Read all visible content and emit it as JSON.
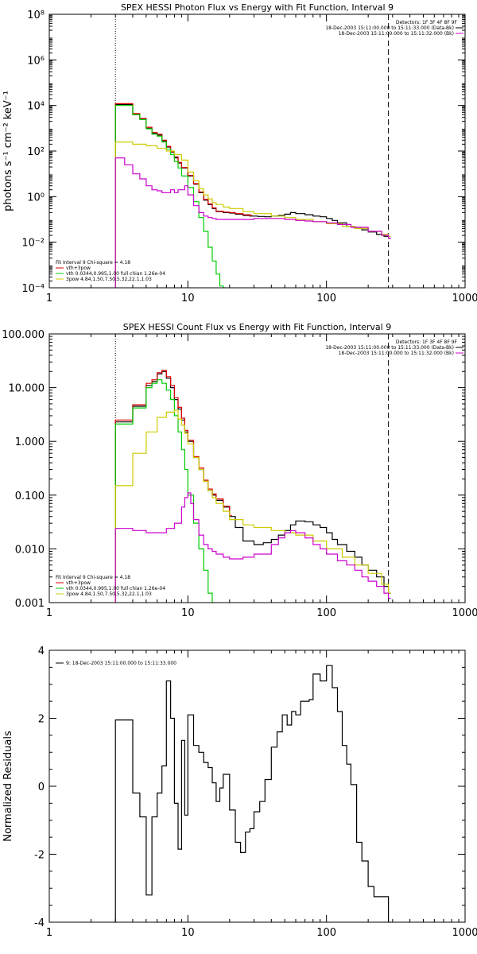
{
  "chart_data": [
    {
      "type": "line",
      "title": "SPEX HESSI Photon Flux vs Energy with Fit Function, Interval 9",
      "xlabel": "",
      "ylabel": "photons s⁻¹ cm⁻² keV⁻¹",
      "xscale": "log",
      "yscale": "log",
      "xlim": [
        1,
        1000
      ],
      "ylim": [
        0.0001,
        100000000
      ],
      "xticks": [
        1,
        10,
        100,
        1000
      ],
      "xtick_labels": [
        "1",
        "10",
        "100",
        "1000"
      ],
      "yticks": [
        0.0001,
        0.01,
        1,
        100,
        10000,
        1000000,
        100000000
      ],
      "ytick_labels": [
        "10⁻⁴",
        "10⁻²",
        "10⁰",
        "10²",
        "10⁴",
        "10⁶",
        "10⁸"
      ],
      "vlines": [
        {
          "x": 3,
          "style": "dotted"
        },
        {
          "x": 280,
          "style": "dashed"
        }
      ],
      "legend_right": {
        "header": "Detectors: 1F 3F 4F 8F 9F",
        "entries": [
          {
            "text": "18-Dec-2003 15:11:00.000 to 15:11:33.000 (Data-Bk)",
            "color": "#000000"
          },
          {
            "text": "18-Dec-2003 15:11:00.000 to 15:11:32.000 (Bk)",
            "color": "#cc00cc"
          }
        ]
      },
      "legend_left": {
        "header": "Fit Interval  9    Chi-square = 4.18",
        "entries": [
          {
            "text": "vth+3pow",
            "color": "#dd0000"
          },
          {
            "text": "vth 0.0344,0.995,1.00  full chian 1.26e-04",
            "color": "#00cc00"
          },
          {
            "text": "3pow 4.84,1.50,7.50,5.32,22.1,1.03",
            "color": "#cccc00"
          }
        ]
      },
      "series": [
        {
          "color": "#000000",
          "step": true,
          "x": [
            3,
            3.5,
            4,
            4.5,
            5,
            5.5,
            6,
            6.5,
            7,
            7.5,
            8,
            8.5,
            9,
            10,
            11,
            12,
            13,
            14,
            15,
            16,
            18,
            20,
            22,
            25,
            28,
            32,
            36,
            40,
            45,
            50,
            55,
            60,
            70,
            80,
            90,
            100,
            110,
            120,
            140,
            160,
            180,
            200,
            230,
            260,
            280
          ],
          "y": [
            11000,
            11000,
            4000,
            2500,
            1000,
            600,
            500,
            280,
            150,
            90,
            50,
            30,
            18,
            8,
            3.5,
            1.5,
            0.7,
            0.45,
            0.3,
            0.22,
            0.2,
            0.19,
            0.17,
            0.15,
            0.14,
            0.135,
            0.13,
            0.14,
            0.15,
            0.17,
            0.2,
            0.18,
            0.16,
            0.14,
            0.13,
            0.11,
            0.09,
            0.07,
            0.05,
            0.04,
            0.035,
            0.028,
            0.022,
            0.018,
            0.015
          ]
        },
        {
          "color": "#dd0000",
          "step": true,
          "x": [
            3,
            3.5,
            4,
            4.5,
            5,
            5.5,
            6,
            6.5,
            7,
            7.5,
            8,
            8.5,
            9,
            10,
            11,
            12,
            13,
            14,
            15,
            16,
            18,
            20,
            22,
            25,
            28
          ],
          "y": [
            12000,
            12000,
            4400,
            2700,
            1100,
            650,
            550,
            300,
            160,
            95,
            55,
            32,
            19,
            8.5,
            3.7,
            1.6,
            0.75,
            0.48,
            0.32,
            0.23,
            0.21,
            0.2,
            0.18,
            0.16,
            0.15
          ]
        },
        {
          "color": "#00cc00",
          "step": true,
          "x": [
            3,
            3.5,
            4,
            4.5,
            5,
            5.5,
            6,
            6.5,
            7,
            7.5,
            8,
            8.5,
            9,
            10,
            11,
            12,
            13,
            14,
            15,
            16,
            17,
            18
          ],
          "y": [
            10000,
            10000,
            4000,
            2400,
            950,
            550,
            450,
            250,
            120,
            70,
            35,
            18,
            8,
            2.5,
            0.6,
            0.12,
            0.03,
            0.006,
            0.0015,
            0.0004,
            0.00012,
            5e-05
          ]
        },
        {
          "color": "#cccc00",
          "step": true,
          "x": [
            3,
            4,
            5,
            6,
            7,
            8,
            9,
            10,
            11,
            12,
            13,
            14,
            15,
            16,
            18,
            20,
            25,
            30,
            40,
            50,
            60,
            80,
            100,
            130,
            160,
            200,
            250,
            280
          ],
          "y": [
            250,
            200,
            170,
            130,
            100,
            70,
            40,
            12,
            5,
            2.2,
            1.2,
            0.8,
            0.55,
            0.45,
            0.35,
            0.3,
            0.22,
            0.18,
            0.14,
            0.12,
            0.1,
            0.08,
            0.065,
            0.05,
            0.04,
            0.03,
            0.022,
            0.018
          ]
        },
        {
          "color": "#cc00cc",
          "step": true,
          "x": [
            3,
            3.5,
            4,
            4.5,
            5,
            5.5,
            6,
            6.5,
            7,
            7.5,
            8,
            8.5,
            9,
            9.5,
            10,
            11,
            12,
            13,
            14,
            15,
            16,
            18,
            20,
            25,
            30,
            40,
            50,
            60,
            70,
            80,
            100,
            120,
            150,
            200,
            250,
            280
          ],
          "y": [
            50,
            25,
            10,
            6,
            3,
            2,
            1.8,
            1.5,
            1.5,
            2,
            1.5,
            2,
            2,
            3,
            1.2,
            0.4,
            0.2,
            0.14,
            0.12,
            0.11,
            0.1,
            0.1,
            0.1,
            0.1,
            0.11,
            0.11,
            0.1,
            0.09,
            0.085,
            0.08,
            0.07,
            0.06,
            0.045,
            0.03,
            0.02,
            0.015
          ]
        }
      ]
    },
    {
      "type": "line",
      "title": "SPEX HESSI Count Flux vs Energy with Fit Function, Interval 9",
      "xlabel": "",
      "ylabel": "",
      "xscale": "log",
      "yscale": "log",
      "xlim": [
        1,
        1000
      ],
      "ylim": [
        0.001,
        100
      ],
      "xticks": [
        1,
        10,
        100,
        1000
      ],
      "xtick_labels": [
        "1",
        "10",
        "100",
        "1000"
      ],
      "yticks": [
        0.001,
        0.01,
        0.1,
        1,
        10,
        100
      ],
      "ytick_labels": [
        "0.001",
        "0.010",
        "0.100",
        "1.000",
        "10.000",
        "100.000"
      ],
      "vlines": [
        {
          "x": 3,
          "style": "dotted"
        },
        {
          "x": 280,
          "style": "dashed"
        }
      ],
      "legend_right": {
        "header": "Detectors: 1F 3F 4F 8F 9F",
        "entries": [
          {
            "text": "18-Dec-2003 15:11:00.000 to 15:11:33.000 (Data-Bk)",
            "color": "#000000"
          },
          {
            "text": "18-Dec-2003 15:11:00.000 to 15:11:32.000 (Bk)",
            "color": "#cc00cc"
          }
        ]
      },
      "legend_left": {
        "header": "Fit Interval  9    Chi-square = 4.18",
        "entries": [
          {
            "text": "vth+3pow",
            "color": "#dd0000"
          },
          {
            "text": "vth 0.0344,0.995,1.00  full chian 1.26e-04",
            "color": "#00cc00"
          },
          {
            "text": "3pow 4.84,1.50,7.50,5.32,22.1,1.03",
            "color": "#cccc00"
          }
        ]
      },
      "series": [
        {
          "color": "#000000",
          "step": true,
          "x": [
            3,
            4,
            5,
            5.5,
            6,
            6.5,
            7,
            7.5,
            8,
            8.5,
            9,
            9.5,
            10,
            11,
            12,
            13,
            14,
            15,
            16,
            18,
            20,
            22,
            25,
            30,
            35,
            40,
            45,
            50,
            55,
            60,
            70,
            80,
            90,
            100,
            110,
            120,
            140,
            160,
            180,
            200,
            230,
            260,
            280
          ],
          "y": [
            2.3,
            4.5,
            11,
            13,
            18,
            20,
            15,
            10,
            6,
            4,
            2.5,
            1.5,
            1,
            0.5,
            0.3,
            0.18,
            0.12,
            0.1,
            0.08,
            0.06,
            0.04,
            0.025,
            0.014,
            0.012,
            0.013,
            0.015,
            0.018,
            0.022,
            0.028,
            0.033,
            0.032,
            0.028,
            0.025,
            0.02,
            0.015,
            0.012,
            0.009,
            0.007,
            0.005,
            0.004,
            0.003,
            0.002,
            0.0015
          ]
        },
        {
          "color": "#dd0000",
          "step": true,
          "x": [
            3,
            4,
            5,
            5.5,
            6,
            6.5,
            7,
            7.5,
            8,
            8.5,
            9,
            9.5,
            10,
            11,
            12,
            13,
            14,
            15,
            16,
            18,
            20
          ],
          "y": [
            2.5,
            4.8,
            12,
            14,
            19,
            21,
            16,
            11,
            6.5,
            4.3,
            2.7,
            1.6,
            1.05,
            0.52,
            0.32,
            0.19,
            0.13,
            0.105,
            0.085,
            0.062,
            0.042
          ]
        },
        {
          "color": "#00cc00",
          "step": true,
          "x": [
            3,
            4,
            5,
            5.5,
            6,
            6.5,
            7,
            7.5,
            8,
            8.5,
            9,
            9.5,
            10,
            11,
            12,
            13,
            14,
            15
          ],
          "y": [
            2.1,
            4.2,
            10,
            12,
            14,
            12,
            9,
            6,
            3,
            1.5,
            0.7,
            0.3,
            0.1,
            0.03,
            0.01,
            0.004,
            0.0015,
            0.0005
          ]
        },
        {
          "color": "#cccc00",
          "step": true,
          "x": [
            3,
            4,
            5,
            6,
            7,
            8,
            8.5,
            9,
            9.5,
            10,
            11,
            12,
            13,
            14,
            15,
            16,
            18,
            20,
            25,
            30,
            40,
            50,
            60,
            80,
            100,
            130,
            160,
            200,
            250,
            280
          ],
          "y": [
            0.15,
            0.6,
            1.5,
            2.8,
            3.5,
            3.8,
            2.6,
            2,
            1.4,
            0.9,
            0.5,
            0.3,
            0.18,
            0.12,
            0.09,
            0.07,
            0.05,
            0.035,
            0.028,
            0.025,
            0.022,
            0.02,
            0.018,
            0.014,
            0.01,
            0.007,
            0.005,
            0.0035,
            0.0022,
            0.0015
          ]
        },
        {
          "color": "#cc00cc",
          "step": true,
          "x": [
            3,
            4,
            5,
            6,
            7,
            8,
            9,
            9.5,
            10,
            10.5,
            11,
            12,
            13,
            14,
            15,
            16,
            18,
            20,
            25,
            30,
            40,
            45,
            50,
            55,
            60,
            70,
            80,
            90,
            100,
            120,
            140,
            160,
            180,
            200,
            230,
            260,
            280
          ],
          "y": [
            0.024,
            0.022,
            0.02,
            0.02,
            0.024,
            0.03,
            0.06,
            0.09,
            0.11,
            0.07,
            0.035,
            0.018,
            0.012,
            0.01,
            0.009,
            0.008,
            0.007,
            0.0065,
            0.007,
            0.008,
            0.012,
            0.016,
            0.02,
            0.022,
            0.02,
            0.016,
            0.012,
            0.01,
            0.008,
            0.006,
            0.005,
            0.004,
            0.003,
            0.0025,
            0.002,
            0.0015,
            0.0012
          ]
        }
      ]
    },
    {
      "type": "line",
      "title": "",
      "xlabel": "",
      "ylabel": "Normalized Residuals",
      "xscale": "log",
      "yscale": "linear",
      "xlim": [
        1,
        1000
      ],
      "ylim": [
        -4,
        4
      ],
      "xticks": [
        1,
        10,
        100,
        1000
      ],
      "xtick_labels": [
        "1",
        "10",
        "100",
        "1000"
      ],
      "yticks": [
        -4,
        -2,
        0,
        2,
        4
      ],
      "ytick_labels": [
        "-4",
        "-2",
        "0",
        "2",
        "4"
      ],
      "legend_left": {
        "header": "",
        "entries": [
          {
            "text": "9: 18-Dec-2003 15:11:00.000 to 15:11:33.000",
            "color": "#000000"
          }
        ]
      },
      "series": [
        {
          "color": "#000000",
          "step": true,
          "x": [
            3,
            4,
            4.5,
            5,
            5.5,
            6,
            6.5,
            7,
            7.5,
            8,
            8.5,
            9,
            9.5,
            10,
            11,
            12,
            13,
            14,
            15,
            16,
            17,
            18,
            20,
            22,
            24,
            26,
            28,
            30,
            33,
            36,
            40,
            44,
            48,
            52,
            56,
            60,
            65,
            70,
            75,
            80,
            90,
            100,
            110,
            120,
            130,
            140,
            150,
            165,
            180,
            200,
            220,
            250,
            280
          ],
          "y": [
            1.95,
            -0.2,
            -0.9,
            -3.2,
            -0.9,
            -0.2,
            0.6,
            3.1,
            2,
            -0.5,
            -1.85,
            1.35,
            -0.85,
            2.1,
            1.2,
            1.0,
            0.7,
            0.55,
            0.1,
            -0.45,
            -0.05,
            0.35,
            -0.7,
            -1.65,
            -1.95,
            -1.35,
            -1.25,
            -0.75,
            -0.45,
            0.2,
            1.15,
            1.6,
            2.1,
            1.8,
            2.2,
            2.1,
            2.5,
            2.5,
            2.55,
            3.3,
            3.1,
            3.55,
            2.9,
            2.2,
            1.2,
            0.65,
            0.05,
            -1.65,
            -2.2,
            -2.95,
            -3.25,
            -3.25,
            -4.2
          ]
        }
      ]
    }
  ]
}
